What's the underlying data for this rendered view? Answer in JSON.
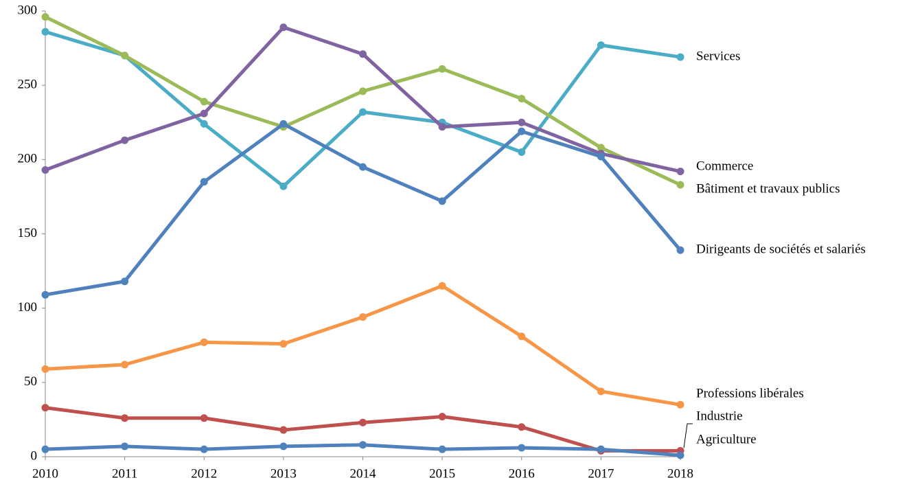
{
  "chart_data": {
    "type": "line",
    "categories": [
      "2010",
      "2011",
      "2012",
      "2013",
      "2014",
      "2015",
      "2016",
      "2017",
      "2018"
    ],
    "ylim": [
      0,
      300
    ],
    "yticks": [
      0,
      50,
      100,
      150,
      200,
      250,
      300
    ],
    "grid": false,
    "series": [
      {
        "name": "Services",
        "color": "#4bacc6",
        "values": [
          286,
          270,
          224,
          182,
          232,
          225,
          205,
          277,
          269
        ]
      },
      {
        "name": "Bâtiment et travaux publics",
        "color": "#9bbb59",
        "values": [
          296,
          270,
          239,
          222,
          246,
          261,
          241,
          208,
          183
        ]
      },
      {
        "name": "Commerce",
        "color": "#8064a2",
        "values": [
          193,
          213,
          231,
          289,
          271,
          222,
          225,
          204,
          192
        ]
      },
      {
        "name": "Dirigeants de sociétés et salariés",
        "color": "#4f81bd",
        "values": [
          109,
          118,
          185,
          224,
          195,
          172,
          219,
          202,
          139
        ]
      },
      {
        "name": "Professions libérales",
        "color": "#f79646",
        "values": [
          59,
          62,
          77,
          76,
          94,
          115,
          81,
          44,
          35
        ]
      },
      {
        "name": "Industrie",
        "color": "#c0504d",
        "values": [
          33,
          26,
          26,
          18,
          23,
          27,
          20,
          4,
          4
        ]
      },
      {
        "name": "Agriculture",
        "color": "#4f81bd",
        "values": [
          5,
          7,
          5,
          7,
          8,
          5,
          6,
          5,
          1
        ]
      }
    ]
  }
}
